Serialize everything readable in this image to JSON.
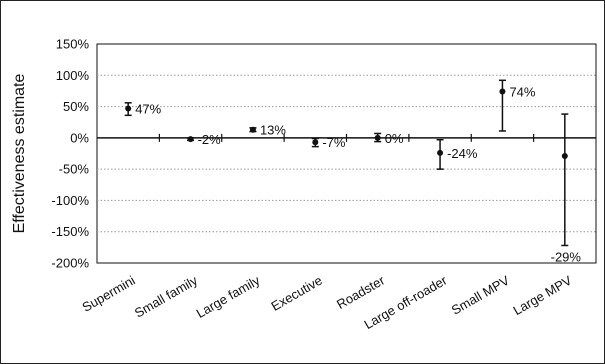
{
  "chart_data": {
    "type": "scatter",
    "title": "",
    "xlabel": "",
    "ylabel": "Effectiveness estimate",
    "ylim": [
      -200,
      150
    ],
    "yticks": [
      150,
      100,
      50,
      0,
      -50,
      -100,
      -150,
      -200
    ],
    "ytick_labels": [
      "150%",
      "100%",
      "50%",
      "0%",
      "-50%",
      "-100%",
      "-150%",
      "-200%"
    ],
    "grid": "horizontal-dotted",
    "legend": "none",
    "categories": [
      "Supermini",
      "Small family",
      "Large family",
      "Executive",
      "Roadster",
      "Large off-roader",
      "Small MPV",
      "Large MPV"
    ],
    "points": [
      {
        "category": "Supermini",
        "value": 47,
        "low": 36,
        "high": 56,
        "label": "47%"
      },
      {
        "category": "Small family",
        "value": -2,
        "low": -4,
        "high": 0,
        "label": "-2%"
      },
      {
        "category": "Large family",
        "value": 13,
        "low": 10,
        "high": 16,
        "label": "13%"
      },
      {
        "category": "Executive",
        "value": -7,
        "low": -14,
        "high": -1,
        "label": "-7%"
      },
      {
        "category": "Roadster",
        "value": 0,
        "low": -6,
        "high": 7,
        "label": "0%"
      },
      {
        "category": "Large off-roader",
        "value": -24,
        "low": -50,
        "high": -3,
        "label": "-24%"
      },
      {
        "category": "Small MPV",
        "value": 74,
        "low": 11,
        "high": 92,
        "label": "74%"
      },
      {
        "category": "Large MPV",
        "value": -29,
        "low": -172,
        "high": 38,
        "label": "-29%"
      }
    ],
    "colors": {
      "marker": "#111111",
      "axis": "#111111",
      "grid": "#9a9a9a"
    }
  }
}
